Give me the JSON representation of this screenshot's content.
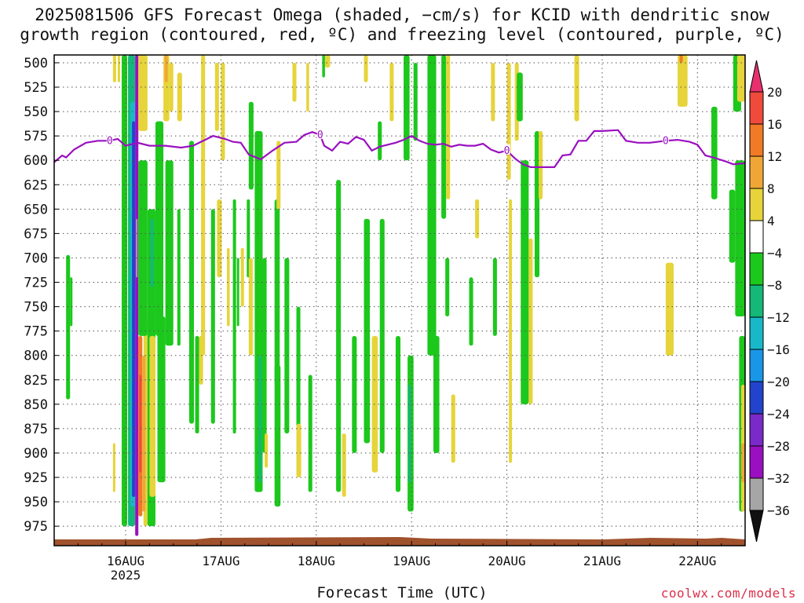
{
  "title_line1": "2025081506 GFS Forecast Omega (shaded, −cm/s) for KCID with dendritic snow",
  "title_line2": "growth region (contoured, red, ºC) and freezing level (contoured, purple, ºC)",
  "xlabel": "Forecast Time (UTC)",
  "credit": "coolwx.com/models",
  "chart_data": {
    "type": "heatmap",
    "title": "2025081506 GFS Forecast Omega (shaded, −cm/s) for KCID with dendritic snow growth region (contoured, red, ºC) and freezing level (contoured, purple, ºC)",
    "xlabel": "Forecast Time (UTC)",
    "ylabel": "",
    "x_range_hours": [
      0,
      174
    ],
    "x_ticks": [
      {
        "hour": 18,
        "label": "16AUG",
        "sublabel": "2025"
      },
      {
        "hour": 42,
        "label": "17AUG"
      },
      {
        "hour": 66,
        "label": "18AUG"
      },
      {
        "hour": 90,
        "label": "19AUG"
      },
      {
        "hour": 114,
        "label": "20AUG"
      },
      {
        "hour": 138,
        "label": "21AUG"
      },
      {
        "hour": 162,
        "label": "22AUG"
      }
    ],
    "y_ticks": [
      "500",
      "525",
      "550",
      "575",
      "600",
      "625",
      "650",
      "675",
      "700",
      "725",
      "750",
      "775",
      "800",
      "825",
      "850",
      "875",
      "900",
      "925",
      "950",
      "975"
    ],
    "ylim_hpa": [
      995,
      492
    ],
    "grid": true,
    "colorbar": {
      "labels": [
        "20",
        "16",
        "12",
        "8",
        "4",
        "−4",
        "−8",
        "−12",
        "−16",
        "−20",
        "−24",
        "−28",
        "−32",
        "−36"
      ],
      "colors": [
        "#e8306e",
        "#f04a3c",
        "#f07a26",
        "#f0a636",
        "#e6d43a",
        "#ffffff",
        "#1cc81c",
        "#14b878",
        "#18b8c8",
        "#1a96e6",
        "#2244cc",
        "#7a2ac8",
        "#9a10c0",
        "#a6a6a6",
        "#111111"
      ]
    },
    "freezing_level": {
      "color": "#9a10c0",
      "label": "0",
      "points": [
        [
          0,
          602
        ],
        [
          2,
          595
        ],
        [
          3,
          597
        ],
        [
          5,
          589
        ],
        [
          8,
          582
        ],
        [
          11,
          580
        ],
        [
          14,
          580
        ],
        [
          16,
          578
        ],
        [
          18,
          585
        ],
        [
          21,
          582
        ],
        [
          24,
          585
        ],
        [
          28,
          585
        ],
        [
          32,
          587
        ],
        [
          35,
          585
        ],
        [
          38,
          579
        ],
        [
          40,
          575
        ],
        [
          43,
          578
        ],
        [
          45,
          581
        ],
        [
          47,
          582
        ],
        [
          49,
          594
        ],
        [
          52,
          599
        ],
        [
          55,
          590
        ],
        [
          58,
          582
        ],
        [
          61,
          581
        ],
        [
          63,
          574
        ],
        [
          65,
          571
        ],
        [
          67,
          574
        ],
        [
          68,
          585
        ],
        [
          70,
          590
        ],
        [
          72,
          581
        ],
        [
          74,
          583
        ],
        [
          76,
          576
        ],
        [
          78,
          579
        ],
        [
          80,
          590
        ],
        [
          82,
          586
        ],
        [
          84,
          584
        ],
        [
          86,
          582
        ],
        [
          88,
          579
        ],
        [
          90,
          575
        ],
        [
          92,
          580
        ],
        [
          94,
          583
        ],
        [
          96,
          584
        ],
        [
          98,
          583
        ],
        [
          100,
          586
        ],
        [
          102,
          584
        ],
        [
          104,
          585
        ],
        [
          106,
          585
        ],
        [
          108,
          583
        ],
        [
          110,
          589
        ],
        [
          112,
          592
        ],
        [
          114,
          590
        ],
        [
          116,
          598
        ],
        [
          118,
          604
        ],
        [
          120,
          607
        ],
        [
          122,
          607
        ],
        [
          126,
          607
        ],
        [
          128,
          595
        ],
        [
          130,
          594
        ],
        [
          132,
          580
        ],
        [
          134,
          580
        ],
        [
          136,
          570
        ],
        [
          138,
          570
        ],
        [
          142,
          569
        ],
        [
          144,
          580
        ],
        [
          147,
          582
        ],
        [
          150,
          582
        ],
        [
          154,
          580
        ],
        [
          157,
          579
        ],
        [
          160,
          581
        ],
        [
          162,
          584
        ],
        [
          164,
          595
        ],
        [
          166,
          597
        ],
        [
          169,
          601
        ],
        [
          171,
          604
        ],
        [
          174,
          603
        ]
      ]
    },
    "omega_regions": [
      {
        "v": -8,
        "t0": 3.0,
        "t1": 4.0,
        "p0": 697,
        "p1": 845
      },
      {
        "v": -8,
        "t0": 4.0,
        "t1": 4.6,
        "p0": 720,
        "p1": 770
      },
      {
        "v": 4,
        "t0": 14.8,
        "t1": 15.4,
        "p0": 890,
        "p1": 940
      },
      {
        "v": 4,
        "t0": 14.8,
        "t1": 15.6,
        "p0": 492,
        "p1": 520
      },
      {
        "v": 4,
        "t0": 16.0,
        "t1": 16.6,
        "p0": 492,
        "p1": 520
      },
      {
        "v": -8,
        "t0": 17.0,
        "t1": 18.4,
        "p0": 492,
        "p1": 975
      },
      {
        "v": -12,
        "t0": 18.6,
        "t1": 20.4,
        "p0": 492,
        "p1": 975
      },
      {
        "v": -16,
        "t0": 19.2,
        "t1": 20.4,
        "p0": 540,
        "p1": 955
      },
      {
        "v": -24,
        "t0": 19.6,
        "t1": 20.4,
        "p0": 560,
        "p1": 945
      },
      {
        "v": -32,
        "t0": 20.4,
        "t1": 21.2,
        "p0": 490,
        "p1": 985
      },
      {
        "v": -36,
        "t0": 20.6,
        "t1": 21.0,
        "p0": 660,
        "p1": 720
      },
      {
        "v": 12,
        "t0": 21.2,
        "t1": 22.2,
        "p0": 780,
        "p1": 965
      },
      {
        "v": 16,
        "t0": 21.4,
        "t1": 22.0,
        "p0": 820,
        "p1": 920
      },
      {
        "v": 4,
        "t0": 21.2,
        "t1": 23.5,
        "p0": 492,
        "p1": 570
      },
      {
        "v": 4,
        "t0": 22.5,
        "t1": 23.5,
        "p0": 760,
        "p1": 975
      },
      {
        "v": 8,
        "t0": 22.2,
        "t1": 23.0,
        "p0": 800,
        "p1": 960
      },
      {
        "v": -8,
        "t0": 21.2,
        "t1": 23.5,
        "p0": 600,
        "p1": 780
      },
      {
        "v": -8,
        "t0": 23.5,
        "t1": 25.5,
        "p0": 650,
        "p1": 975
      },
      {
        "v": -8,
        "t0": 25.5,
        "t1": 27.5,
        "p0": 560,
        "p1": 780
      },
      {
        "v": -12,
        "t0": 24.2,
        "t1": 25.0,
        "p0": 660,
        "p1": 730
      },
      {
        "v": -8,
        "t0": 26.0,
        "t1": 28.0,
        "p0": 760,
        "p1": 930
      },
      {
        "v": 4,
        "t0": 24.0,
        "t1": 25.5,
        "p0": 780,
        "p1": 945
      },
      {
        "v": 4,
        "t0": 27.5,
        "t1": 29.0,
        "p0": 492,
        "p1": 560
      },
      {
        "v": 8,
        "t0": 27.8,
        "t1": 28.6,
        "p0": 492,
        "p1": 520
      },
      {
        "v": -8,
        "t0": 28.0,
        "t1": 30.0,
        "p0": 600,
        "p1": 790
      },
      {
        "v": 4,
        "t0": 29.0,
        "t1": 30.0,
        "p0": 500,
        "p1": 550
      },
      {
        "v": -8,
        "t0": 31.0,
        "t1": 31.8,
        "p0": 650,
        "p1": 790
      },
      {
        "v": 4,
        "t0": 31.0,
        "t1": 32.2,
        "p0": 510,
        "p1": 560
      },
      {
        "v": -8,
        "t0": 34.0,
        "t1": 35.2,
        "p0": 580,
        "p1": 870
      },
      {
        "v": -8,
        "t0": 35.5,
        "t1": 36.5,
        "p0": 780,
        "p1": 880
      },
      {
        "v": 4,
        "t0": 36.5,
        "t1": 37.5,
        "p0": 780,
        "p1": 830
      },
      {
        "v": 4,
        "t0": 37.0,
        "t1": 38.0,
        "p0": 492,
        "p1": 800
      },
      {
        "v": -8,
        "t0": 39.5,
        "t1": 40.5,
        "p0": 650,
        "p1": 870
      },
      {
        "v": 4,
        "t0": 40.5,
        "t1": 41.5,
        "p0": 500,
        "p1": 570
      },
      {
        "v": 4,
        "t0": 41.0,
        "t1": 42.2,
        "p0": 640,
        "p1": 720
      },
      {
        "v": 4,
        "t0": 42.0,
        "t1": 43.0,
        "p0": 500,
        "p1": 600
      },
      {
        "v": 4,
        "t0": 43.5,
        "t1": 44.2,
        "p0": 690,
        "p1": 770
      },
      {
        "v": -8,
        "t0": 45.0,
        "t1": 45.8,
        "p0": 640,
        "p1": 880
      },
      {
        "v": -8,
        "t0": 46.0,
        "t1": 46.6,
        "p0": 700,
        "p1": 770
      },
      {
        "v": 4,
        "t0": 47.0,
        "t1": 47.8,
        "p0": 690,
        "p1": 750
      },
      {
        "v": -8,
        "t0": 48.5,
        "t1": 49.3,
        "p0": 640,
        "p1": 720
      },
      {
        "v": 4,
        "t0": 49.0,
        "t1": 50.0,
        "p0": 700,
        "p1": 800
      },
      {
        "v": -8,
        "t0": 49.0,
        "t1": 50.2,
        "p0": 540,
        "p1": 630
      },
      {
        "v": -8,
        "t0": 50.5,
        "t1": 52.5,
        "p0": 570,
        "p1": 940
      },
      {
        "v": -12,
        "t0": 51.5,
        "t1": 52.2,
        "p0": 800,
        "p1": 930
      },
      {
        "v": -8,
        "t0": 52.5,
        "t1": 53.5,
        "p0": 700,
        "p1": 900
      },
      {
        "v": 4,
        "t0": 53.0,
        "t1": 53.8,
        "p0": 880,
        "p1": 915
      },
      {
        "v": -8,
        "t0": 55.5,
        "t1": 57.0,
        "p0": 810,
        "p1": 955
      },
      {
        "v": -8,
        "t0": 55.5,
        "t1": 56.8,
        "p0": 640,
        "p1": 830
      },
      {
        "v": 4,
        "t0": 56.0,
        "t1": 57.0,
        "p0": 580,
        "p1": 650
      },
      {
        "v": -8,
        "t0": 58.0,
        "t1": 59.2,
        "p0": 700,
        "p1": 880
      },
      {
        "v": 4,
        "t0": 60.0,
        "t1": 61.0,
        "p0": 500,
        "p1": 540
      },
      {
        "v": -8,
        "t0": 61.0,
        "t1": 62.0,
        "p0": 750,
        "p1": 900
      },
      {
        "v": 4,
        "t0": 61.0,
        "t1": 62.2,
        "p0": 870,
        "p1": 925
      },
      {
        "v": 4,
        "t0": 63.5,
        "t1": 64.2,
        "p0": 500,
        "p1": 550
      },
      {
        "v": -8,
        "t0": 64.0,
        "t1": 65.0,
        "p0": 820,
        "p1": 940
      },
      {
        "v": -8,
        "t0": 67.5,
        "t1": 68.2,
        "p0": 492,
        "p1": 515
      },
      {
        "v": 4,
        "t0": 68.2,
        "t1": 69.5,
        "p0": 492,
        "p1": 505
      },
      {
        "v": -8,
        "t0": 71.0,
        "t1": 72.2,
        "p0": 620,
        "p1": 940
      },
      {
        "v": 4,
        "t0": 72.5,
        "t1": 73.5,
        "p0": 880,
        "p1": 945
      },
      {
        "v": 4,
        "t0": 78.0,
        "t1": 79.0,
        "p0": 492,
        "p1": 520
      },
      {
        "v": -8,
        "t0": 75.0,
        "t1": 76.2,
        "p0": 780,
        "p1": 900
      },
      {
        "v": -8,
        "t0": 78.0,
        "t1": 79.5,
        "p0": 660,
        "p1": 890
      },
      {
        "v": 4,
        "t0": 80.0,
        "t1": 81.5,
        "p0": 780,
        "p1": 920
      },
      {
        "v": -8,
        "t0": 81.5,
        "t1": 82.5,
        "p0": 560,
        "p1": 600
      },
      {
        "v": -8,
        "t0": 82.0,
        "t1": 83.2,
        "p0": 660,
        "p1": 900
      },
      {
        "v": 4,
        "t0": 84.5,
        "t1": 85.5,
        "p0": 500,
        "p1": 560
      },
      {
        "v": -8,
        "t0": 86.0,
        "t1": 87.2,
        "p0": 780,
        "p1": 940
      },
      {
        "v": -8,
        "t0": 88.0,
        "t1": 89.5,
        "p0": 492,
        "p1": 600
      },
      {
        "v": -8,
        "t0": 89.0,
        "t1": 90.5,
        "p0": 800,
        "p1": 960
      },
      {
        "v": -12,
        "t0": 89.2,
        "t1": 89.9,
        "p0": 830,
        "p1": 930
      },
      {
        "v": -8,
        "t0": 90.5,
        "t1": 91.5,
        "p0": 500,
        "p1": 580
      },
      {
        "v": -12,
        "t0": 94.5,
        "t1": 95.2,
        "p0": 492,
        "p1": 640
      },
      {
        "v": -8,
        "t0": 94.0,
        "t1": 96.2,
        "p0": 492,
        "p1": 800
      },
      {
        "v": -8,
        "t0": 95.5,
        "t1": 97.0,
        "p0": 780,
        "p1": 900
      },
      {
        "v": -8,
        "t0": 97.5,
        "t1": 98.7,
        "p0": 492,
        "p1": 660
      },
      {
        "v": 4,
        "t0": 98.7,
        "t1": 99.7,
        "p0": 492,
        "p1": 640
      },
      {
        "v": -8,
        "t0": 98.5,
        "t1": 99.5,
        "p0": 700,
        "p1": 760
      },
      {
        "v": 4,
        "t0": 100.0,
        "t1": 101.0,
        "p0": 840,
        "p1": 910
      },
      {
        "v": -8,
        "t0": 104.5,
        "t1": 105.5,
        "p0": 720,
        "p1": 790
      },
      {
        "v": 4,
        "t0": 106.0,
        "t1": 107.0,
        "p0": 640,
        "p1": 680
      },
      {
        "v": 4,
        "t0": 110.0,
        "t1": 111.0,
        "p0": 500,
        "p1": 560
      },
      {
        "v": -8,
        "t0": 110.5,
        "t1": 111.5,
        "p0": 700,
        "p1": 780
      },
      {
        "v": 4,
        "t0": 114.5,
        "t1": 115.3,
        "p0": 640,
        "p1": 910
      },
      {
        "v": 4,
        "t0": 114.0,
        "t1": 115.0,
        "p0": 500,
        "p1": 620
      },
      {
        "v": 4,
        "t0": 116.0,
        "t1": 117.0,
        "p0": 500,
        "p1": 580
      },
      {
        "v": -8,
        "t0": 116.5,
        "t1": 118.0,
        "p0": 510,
        "p1": 560
      },
      {
        "v": -8,
        "t0": 117.5,
        "t1": 119.5,
        "p0": 600,
        "p1": 850
      },
      {
        "v": 4,
        "t0": 119.5,
        "t1": 120.5,
        "p0": 680,
        "p1": 850
      },
      {
        "v": -8,
        "t0": 121.0,
        "t1": 122.2,
        "p0": 570,
        "p1": 720
      },
      {
        "v": 4,
        "t0": 122.0,
        "t1": 123.0,
        "p0": 570,
        "p1": 640
      },
      {
        "v": 4,
        "t0": 131.0,
        "t1": 132.2,
        "p0": 492,
        "p1": 560
      },
      {
        "v": 4,
        "t0": 154.0,
        "t1": 156.0,
        "p0": 705,
        "p1": 800
      },
      {
        "v": 4,
        "t0": 157.0,
        "t1": 159.5,
        "p0": 492,
        "p1": 545
      },
      {
        "v": 12,
        "t0": 157.5,
        "t1": 158.3,
        "p0": 492,
        "p1": 500
      },
      {
        "v": -8,
        "t0": 165.5,
        "t1": 167.0,
        "p0": 545,
        "p1": 640
      },
      {
        "v": -8,
        "t0": 171.0,
        "t1": 173.0,
        "p0": 492,
        "p1": 550
      },
      {
        "v": 4,
        "t0": 172.0,
        "t1": 174.0,
        "p0": 492,
        "p1": 540
      },
      {
        "v": -8,
        "t0": 170.0,
        "t1": 171.5,
        "p0": 630,
        "p1": 705
      },
      {
        "v": -8,
        "t0": 171.5,
        "t1": 174.0,
        "p0": 600,
        "p1": 760
      },
      {
        "v": -8,
        "t0": 172.5,
        "t1": 174.0,
        "p0": 780,
        "p1": 960
      },
      {
        "v": 4,
        "t0": 173.0,
        "t1": 174.0,
        "p0": 830,
        "p1": 960
      },
      {
        "v": 8,
        "t0": 173.0,
        "t1": 174.0,
        "p0": 890,
        "p1": 930
      }
    ]
  }
}
